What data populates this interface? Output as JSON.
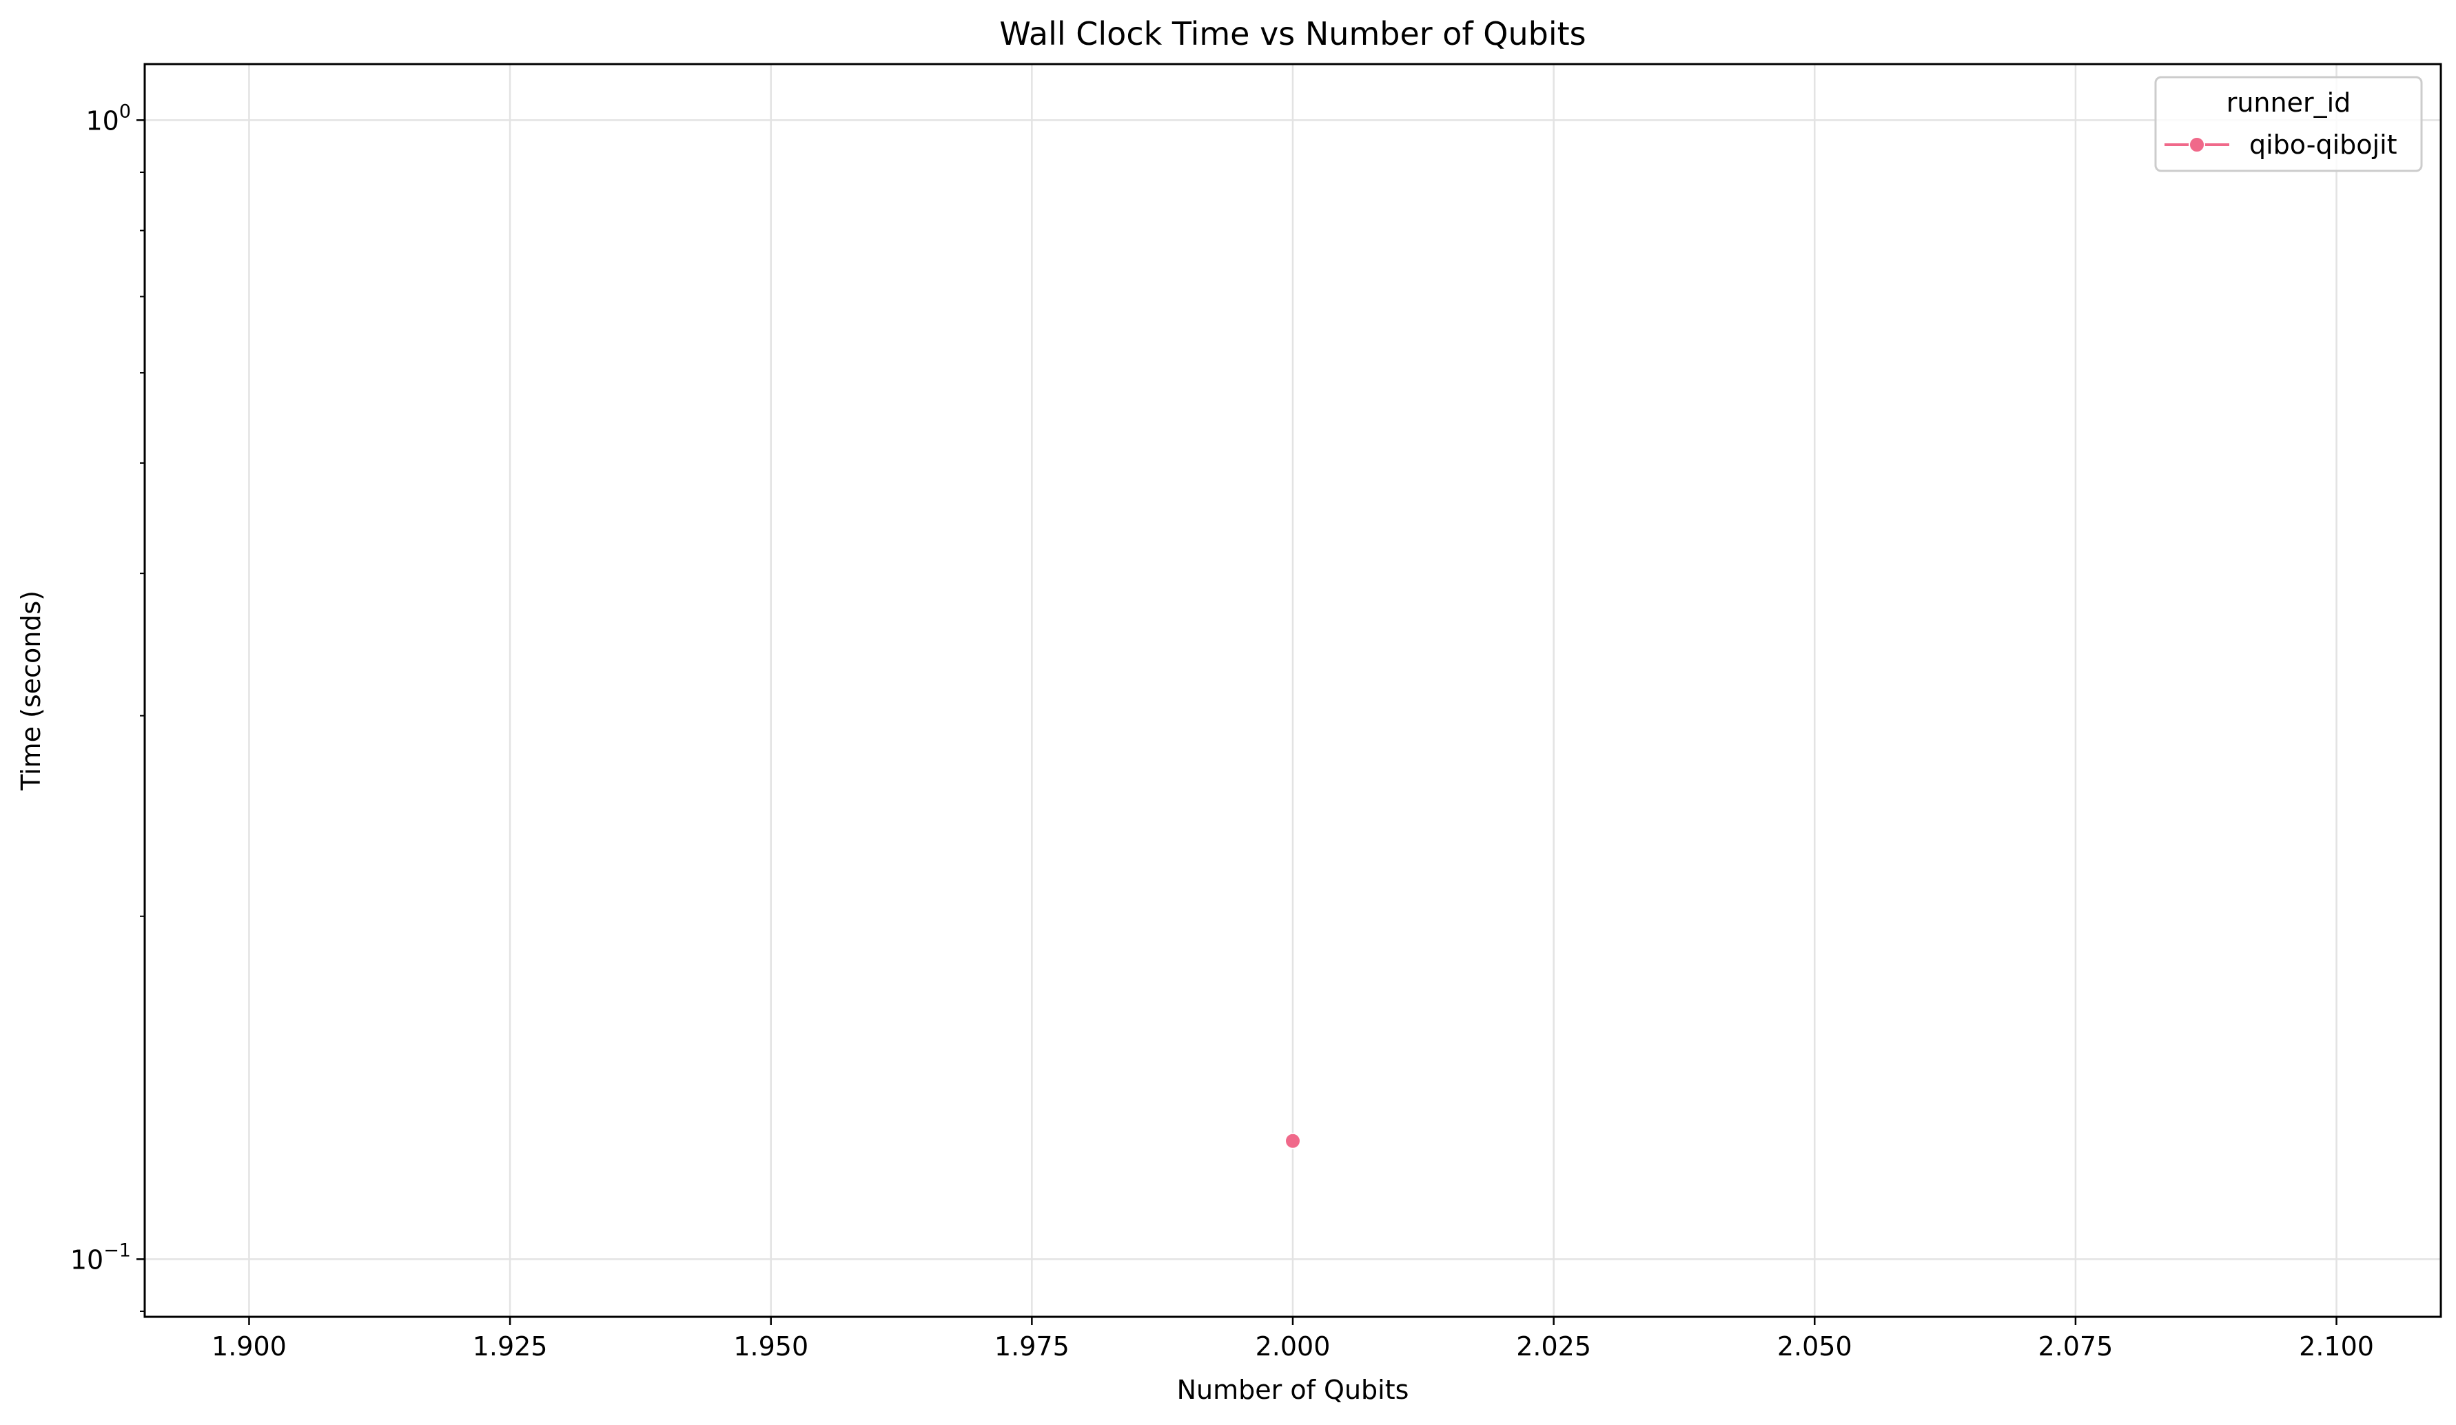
{
  "chart_data": {
    "type": "scatter",
    "title": "Wall Clock Time vs Number of Qubits",
    "xlabel": "Number of Qubits",
    "ylabel": "Time (seconds)",
    "xlim": [
      1.89,
      2.11
    ],
    "ylim": [
      0.089,
      1.12
    ],
    "yscale": "log",
    "grid": true,
    "x_ticks": [
      1.9,
      1.925,
      1.95,
      1.975,
      2.0,
      2.025,
      2.05,
      2.075,
      2.1
    ],
    "x_tick_labels": [
      "1.900",
      "1.925",
      "1.950",
      "1.975",
      "2.000",
      "2.025",
      "2.050",
      "2.075",
      "2.100"
    ],
    "y_major_ticks": [
      {
        "value": 1.0,
        "base": "10",
        "exp": "0"
      },
      {
        "value": 0.1,
        "base": "10",
        "exp": "−1"
      }
    ],
    "y_minor_ticks": [
      0.09,
      0.2,
      0.3,
      0.4,
      0.5,
      0.6,
      0.7,
      0.8,
      0.9
    ],
    "legend": {
      "title": "runner_id",
      "position": "top-right"
    },
    "series": [
      {
        "name": "qibo-qibojit",
        "color": "#f0698a",
        "marker": "circle",
        "points": [
          {
            "x": 2.0,
            "y": 0.127
          }
        ]
      }
    ]
  }
}
